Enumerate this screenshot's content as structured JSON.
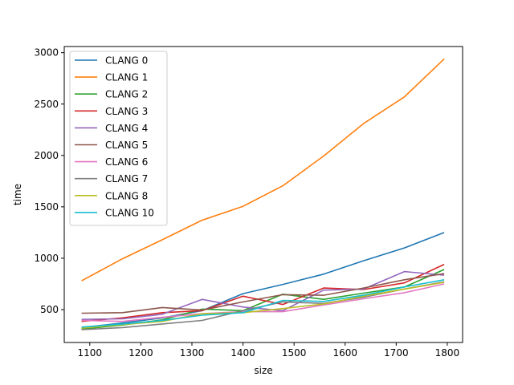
{
  "chart_data": {
    "type": "line",
    "title": "",
    "xlabel": "size",
    "ylabel": "time",
    "xlim": [
      1050,
      1830
    ],
    "ylim": [
      180,
      3060
    ],
    "xticks": [
      1100,
      1200,
      1300,
      1400,
      1500,
      1600,
      1700,
      1800
    ],
    "yticks": [
      500,
      1000,
      1500,
      2000,
      2500,
      3000
    ],
    "grid": false,
    "legend": "top-left",
    "x": [
      1084,
      1164,
      1242,
      1320,
      1400,
      1478,
      1558,
      1636,
      1716,
      1794
    ],
    "series": [
      {
        "name": "CLANG 0",
        "color": "#1f77b4",
        "values": [
          325,
          370,
          420,
          490,
          655,
          745,
          845,
          975,
          1100,
          1250
        ]
      },
      {
        "name": "CLANG 1",
        "color": "#ff7f0e",
        "values": [
          780,
          995,
          1180,
          1370,
          1505,
          1705,
          1995,
          2310,
          2570,
          2940
        ]
      },
      {
        "name": "CLANG 2",
        "color": "#2ca02c",
        "values": [
          310,
          350,
          400,
          505,
          490,
          650,
          600,
          660,
          720,
          890
        ]
      },
      {
        "name": "CLANG 3",
        "color": "#d62728",
        "values": [
          385,
          420,
          470,
          490,
          630,
          550,
          710,
          695,
          760,
          940
        ]
      },
      {
        "name": "CLANG 4",
        "color": "#9467bd",
        "values": [
          405,
          410,
          455,
          600,
          525,
          490,
          690,
          700,
          870,
          835
        ]
      },
      {
        "name": "CLANG 5",
        "color": "#8c564b",
        "values": [
          465,
          470,
          520,
          495,
          575,
          645,
          640,
          710,
          790,
          850
        ]
      },
      {
        "name": "CLANG 6",
        "color": "#e377c2",
        "values": [
          395,
          385,
          425,
          460,
          480,
          480,
          545,
          605,
          665,
          750
        ]
      },
      {
        "name": "CLANG 7",
        "color": "#7f7f7f",
        "values": [
          305,
          325,
          360,
          395,
          490,
          575,
          560,
          620,
          700,
          770
        ]
      },
      {
        "name": "CLANG 8",
        "color": "#bcbd22",
        "values": [
          320,
          355,
          385,
          460,
          470,
          510,
          555,
          630,
          700,
          765
        ]
      },
      {
        "name": "CLANG 10",
        "color": "#17becf",
        "values": [
          330,
          360,
          395,
          445,
          470,
          590,
          580,
          640,
          720,
          790
        ]
      }
    ]
  }
}
